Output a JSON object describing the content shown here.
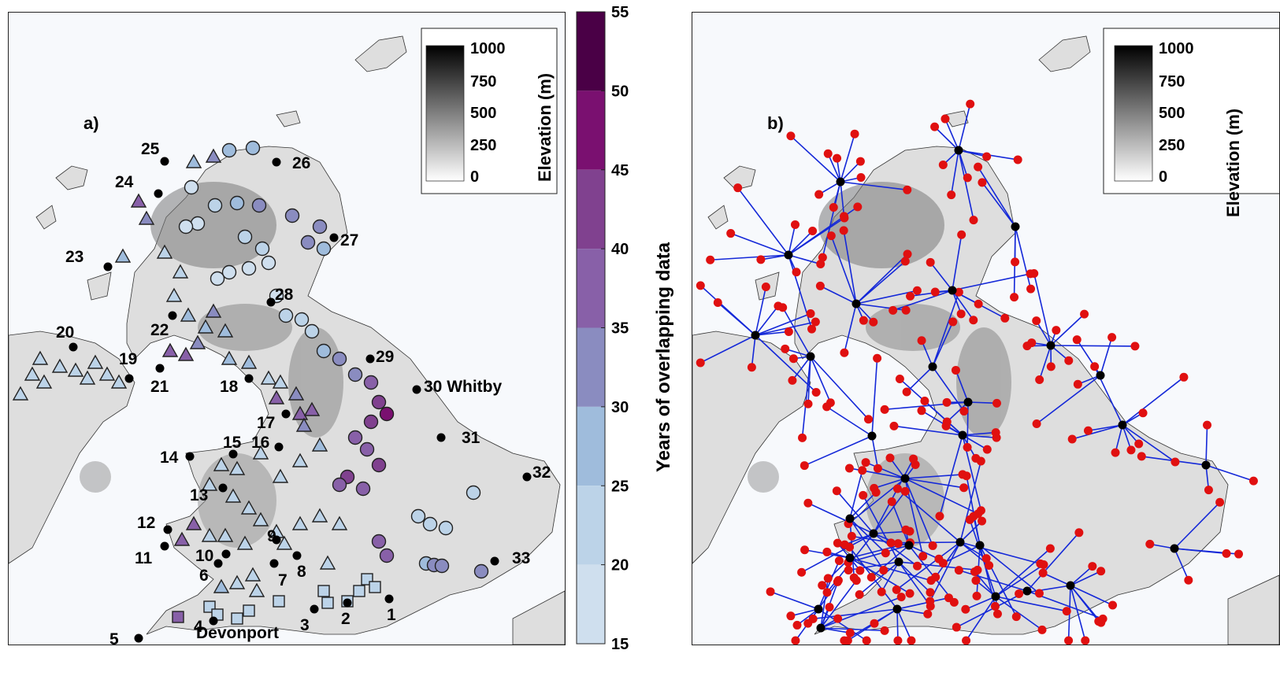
{
  "panel_a": {
    "label": "a)",
    "site_labels": [
      "1",
      "2",
      "3",
      "4",
      "5",
      "6",
      "7",
      "8",
      "9",
      "10",
      "11",
      "12",
      "13",
      "14",
      "15",
      "16",
      "17",
      "18",
      "19",
      "20",
      "21",
      "22",
      "23",
      "24",
      "25",
      "26",
      "27",
      "28",
      "29",
      "30 Whitby",
      "31",
      "32",
      "33"
    ],
    "devonport_label": "Devonport"
  },
  "panel_b": {
    "label": "b)"
  },
  "elevation_legend": {
    "title": "Elevation (m)",
    "ticks": [
      "1000",
      "750",
      "500",
      "250",
      "0"
    ],
    "range": [
      0,
      1000
    ]
  },
  "colorbar": {
    "title": "Years of overlapping data",
    "ticks": [
      "55",
      "50",
      "45",
      "40",
      "35",
      "30",
      "25",
      "20",
      "15"
    ],
    "range": [
      15,
      55
    ],
    "bin_colors": [
      "#4a0046",
      "#7a1070",
      "#80418f",
      "#8860a8",
      "#8a8cc0",
      "#9fbcdc",
      "#bcd3e8",
      "#cfdfee"
    ]
  },
  "colors": {
    "sea": "#f7f9fc",
    "land": "#dedede",
    "highland": "#9a9a9a",
    "gauge_point": "#000000",
    "station_point": "#e01010",
    "link_line": "#1428d8"
  }
}
